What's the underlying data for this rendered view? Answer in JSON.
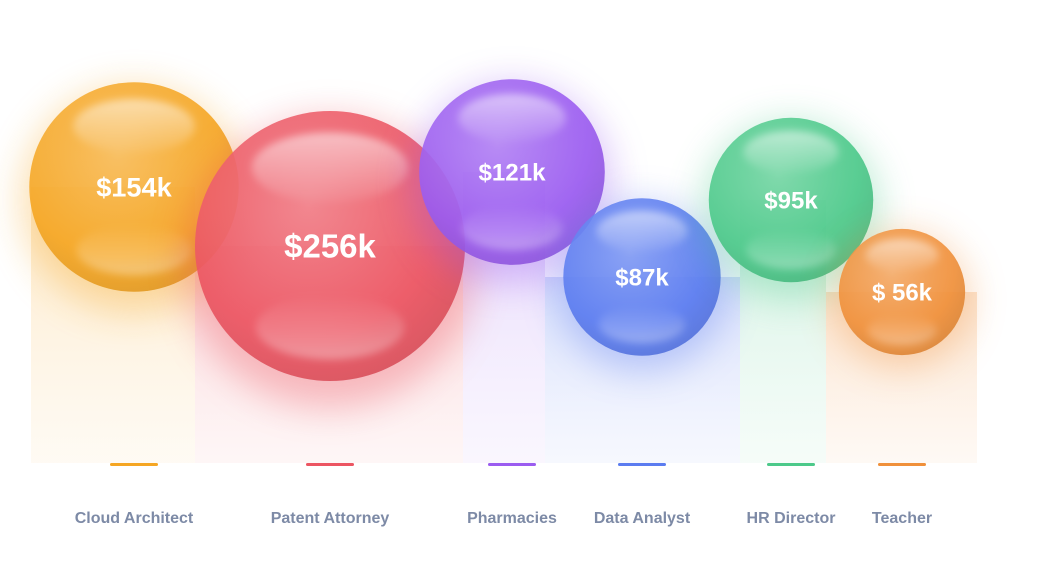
{
  "chart_data": {
    "type": "bubble",
    "title": "",
    "xlabel": "",
    "ylabel": "",
    "grid": false,
    "legend": "none",
    "categories": [
      "Cloud Architect",
      "Patent Attorney",
      "Pharmacies",
      "Data Analyst",
      "HR Director",
      "Teacher"
    ],
    "values": [
      154,
      256,
      121,
      87,
      95,
      56
    ],
    "value_labels": [
      "$154k",
      "$256k",
      "$121k",
      "$87k",
      "$95k",
      "$ 56k"
    ],
    "unit": "k USD",
    "colors": [
      "#f5a623",
      "#ec5562",
      "#9b5cf0",
      "#5b7cf0",
      "#4cc98a",
      "#f0903a"
    ]
  }
}
